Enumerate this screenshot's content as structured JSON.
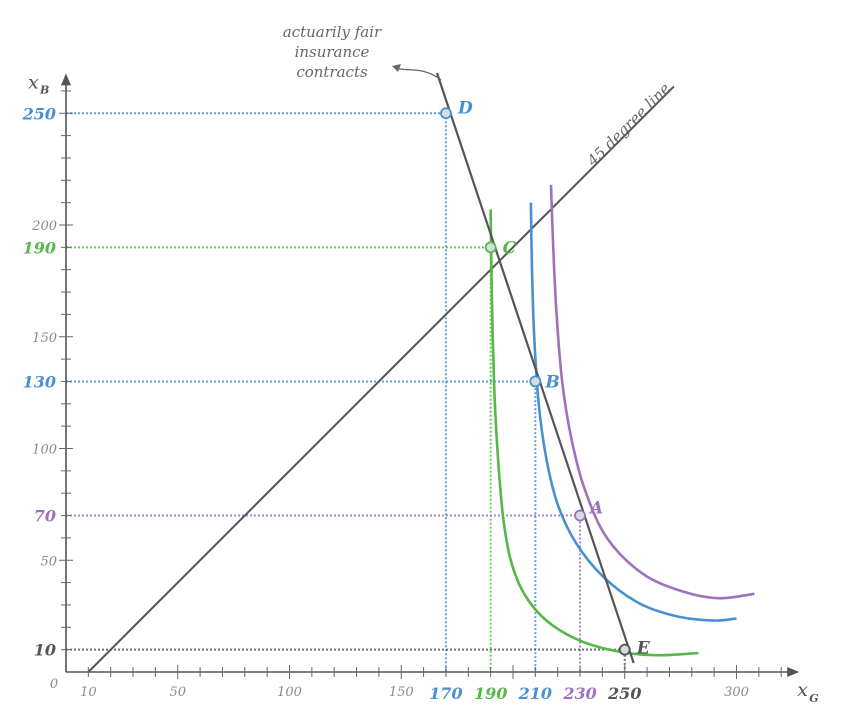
{
  "colors": {
    "blue": "#4a90d0",
    "green": "#55b848",
    "purple": "#a070c0",
    "gray": "#555555",
    "dark": "#555555"
  },
  "chart_data": {
    "type": "line",
    "xlabel": "x",
    "xlabel_sub": "G",
    "ylabel": "x",
    "ylabel_sub": "B",
    "origin_label": "0",
    "xlim": [
      0,
      320
    ],
    "ylim": [
      0,
      262
    ],
    "x_ticks_plain": [
      "10",
      "50",
      "100",
      "150",
      "300"
    ],
    "x_ticks_plain_values": [
      10,
      50,
      100,
      150,
      300
    ],
    "y_ticks_plain": [
      "50",
      "100",
      "150",
      "200"
    ],
    "y_ticks_plain_values": [
      50,
      100,
      150,
      200
    ],
    "x_ticks_highlight": [
      {
        "value": 170,
        "label": "170",
        "color": "blue"
      },
      {
        "value": 190,
        "label": "190",
        "color": "green"
      },
      {
        "value": 210,
        "label": "210",
        "color": "blue"
      },
      {
        "value": 230,
        "label": "230",
        "color": "purple"
      },
      {
        "value": 250,
        "label": "250",
        "color": "gray"
      }
    ],
    "y_ticks_highlight": [
      {
        "value": 250,
        "label": "250",
        "color": "blue"
      },
      {
        "value": 190,
        "label": "190",
        "color": "green"
      },
      {
        "value": 130,
        "label": "130",
        "color": "blue"
      },
      {
        "value": 70,
        "label": "70",
        "color": "purple"
      },
      {
        "value": 10,
        "label": "10",
        "color": "gray"
      }
    ],
    "fair_line": {
      "points": [
        [
          166,
          268
        ],
        [
          254,
          4
        ]
      ],
      "label": "actuarily fair\ninsurance\ncontracts",
      "color": "gray"
    },
    "degree_line": {
      "points": [
        [
          10,
          0
        ],
        [
          272,
          262
        ]
      ],
      "label": "45 degree line",
      "color": "gray"
    },
    "points": [
      {
        "name": "D",
        "x": 170,
        "y": 250,
        "color": "blue"
      },
      {
        "name": "C",
        "x": 190,
        "y": 190,
        "color": "green"
      },
      {
        "name": "B",
        "x": 210,
        "y": 130,
        "color": "blue"
      },
      {
        "name": "A",
        "x": 230,
        "y": 70,
        "color": "purple"
      },
      {
        "name": "E",
        "x": 250,
        "y": 10,
        "color": "gray"
      }
    ],
    "indifference_curves": [
      {
        "color": "green",
        "points": [
          [
            190,
            207
          ],
          [
            190.5,
            170
          ],
          [
            191.5,
            130
          ],
          [
            193,
            100
          ],
          [
            195.5,
            70
          ],
          [
            199,
            50
          ],
          [
            205,
            35
          ],
          [
            215,
            23
          ],
          [
            230,
            14
          ],
          [
            248,
            9
          ],
          [
            265,
            7.5
          ],
          [
            283,
            8.5
          ]
        ]
      },
      {
        "color": "blue",
        "points": [
          [
            208,
            210
          ],
          [
            208.5,
            180
          ],
          [
            209.5,
            150
          ],
          [
            211.5,
            120
          ],
          [
            215,
            95
          ],
          [
            220,
            75
          ],
          [
            228,
            58
          ],
          [
            240,
            43
          ],
          [
            256,
            31
          ],
          [
            273,
            25
          ],
          [
            290,
            23
          ],
          [
            300,
            24
          ]
        ]
      },
      {
        "color": "purple",
        "points": [
          [
            217,
            218
          ],
          [
            218,
            190
          ],
          [
            219.5,
            160
          ],
          [
            222,
            130
          ],
          [
            226,
            105
          ],
          [
            232,
            82
          ],
          [
            242,
            60
          ],
          [
            258,
            44
          ],
          [
            276,
            36
          ],
          [
            292,
            33
          ],
          [
            308,
            35
          ]
        ]
      }
    ]
  }
}
